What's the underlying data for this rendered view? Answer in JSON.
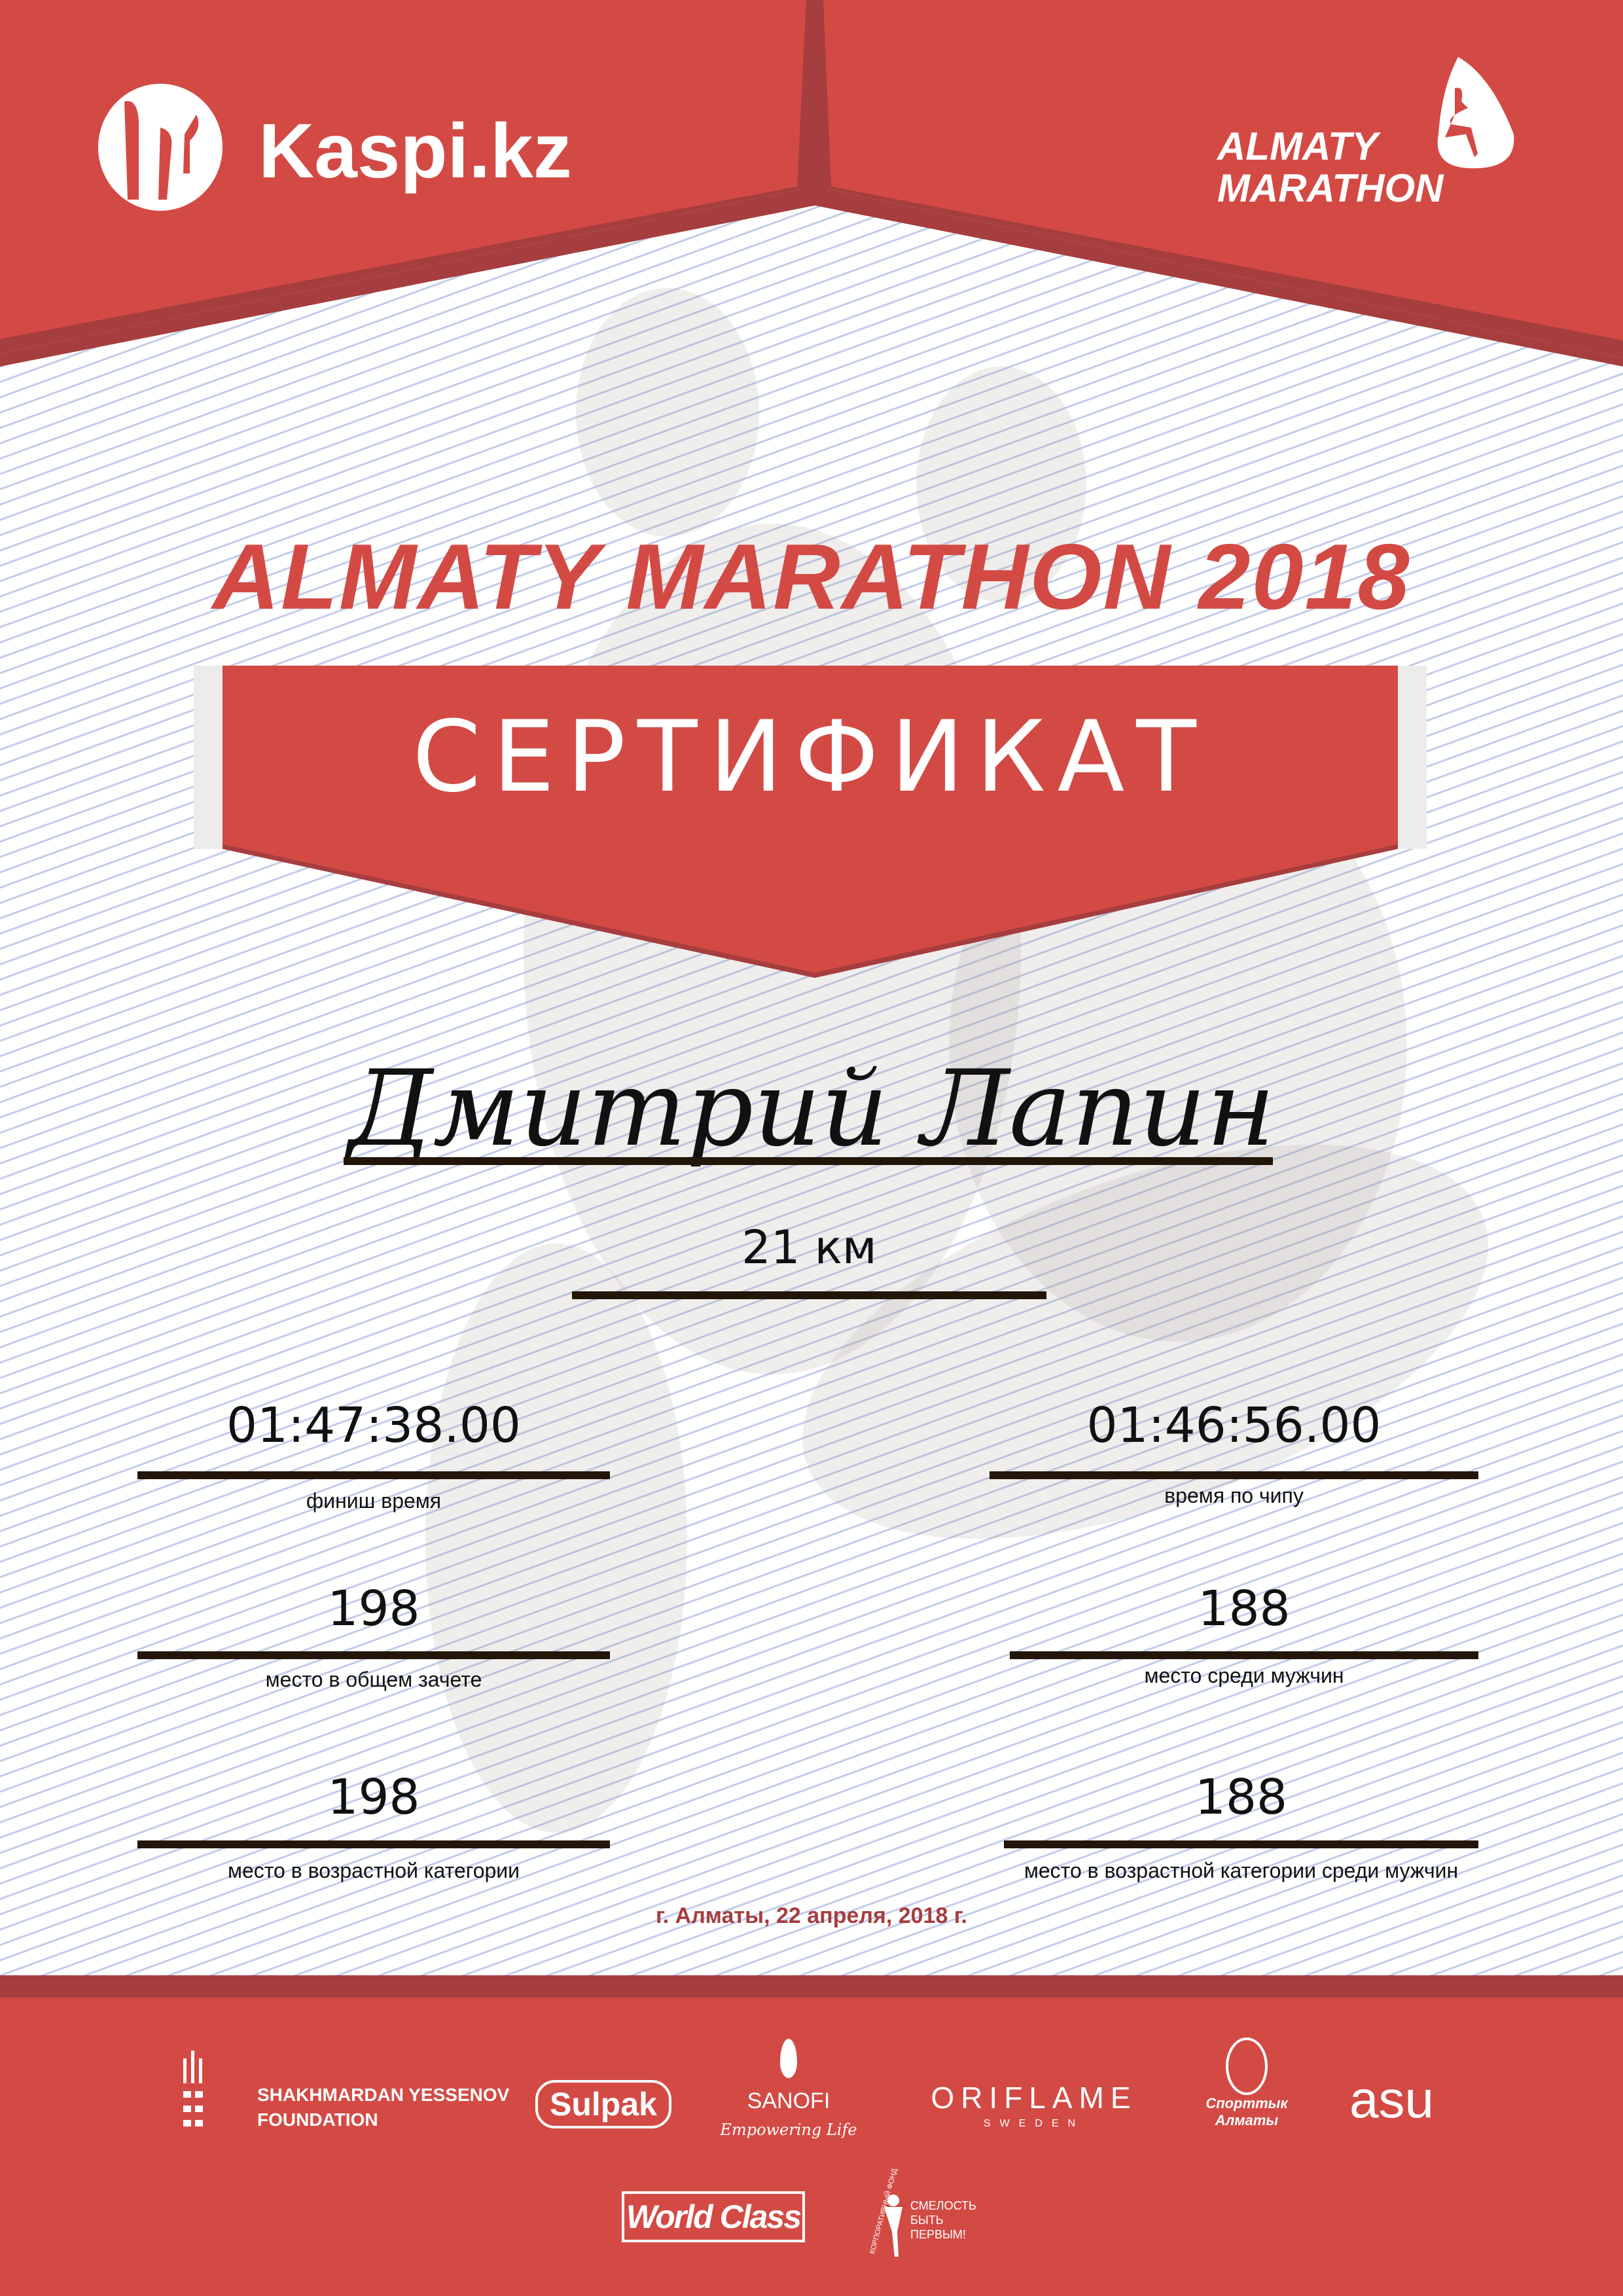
{
  "colors": {
    "brand_red": "#d34a44",
    "dark_red": "#a63d3f",
    "rule": "#231608",
    "lines": "#c3cde9"
  },
  "header": {
    "left_logo": {
      "text": "Kaspi.kz",
      "icon": "kaspi-figures-icon"
    },
    "right_logo": {
      "line1": "ALMATY",
      "line2": "MARATHON",
      "icon": "runner-icon"
    }
  },
  "event_title": "ALMATY MARATHON 2018",
  "certificate_label": "СЕРТИФИКАТ",
  "participant_name": "Дмитрий Лапин",
  "distance": "21 км",
  "results": {
    "finish_time": {
      "value": "01:47:38.00",
      "label": "финиш время"
    },
    "chip_time": {
      "value": "01:46:56.00",
      "label": "время по чипу"
    },
    "overall_place": {
      "value": "198",
      "label": "место в общем зачете"
    },
    "male_place": {
      "value": "188",
      "label": "место среди мужчин"
    },
    "age_place": {
      "value": "198",
      "label": "место в возрастной категории"
    },
    "age_male_place": {
      "value": "188",
      "label": "место в возрастной категории среди мужчин"
    }
  },
  "date_line": "г. Алматы, 22 апреля, 2018 г.",
  "sponsors": {
    "yessenov": {
      "line1": "SHAKHMARDAN YESSENOV",
      "line2": "FOUNDATION"
    },
    "sulpak": "Sulpak",
    "sanofi": {
      "name": "SANOFI",
      "tagline": "Empowering Life"
    },
    "oriflame": {
      "name": "ORIFLAME",
      "sub": "SWEDEN"
    },
    "sportyk": {
      "line1": "Спорттык",
      "line2": "Алматы"
    },
    "asu": "asu",
    "worldclass": "World Class",
    "smelost": {
      "line1": "СМЕЛОСТЬ",
      "line2": "БЫТЬ",
      "line3": "ПЕРВЫМ!",
      "arc": "КОРПОРАТИВНЫЙ ФОНД"
    }
  }
}
